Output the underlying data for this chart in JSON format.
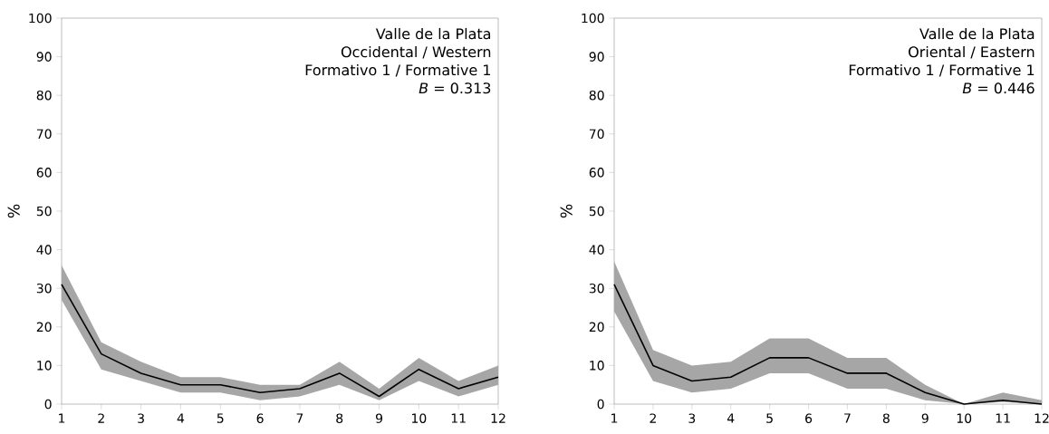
{
  "chart_data": [
    {
      "type": "line",
      "annotations": [
        "Valle de la Plata",
        "Occidental / Western",
        "Formativo 1 / Formative 1",
        "*B* = 0.313"
      ],
      "ylabel": "%",
      "x": [
        1,
        2,
        3,
        4,
        5,
        6,
        7,
        8,
        9,
        10,
        11,
        12
      ],
      "xlim": [
        1,
        12
      ],
      "xticks": [
        1,
        2,
        3,
        4,
        5,
        6,
        7,
        8,
        9,
        10,
        11,
        12
      ],
      "ylim": [
        0,
        100
      ],
      "yticks": [
        0,
        10,
        20,
        30,
        40,
        50,
        60,
        70,
        80,
        90,
        100
      ],
      "grid": false,
      "marker": "none",
      "line_style": "solid",
      "series": [
        {
          "color": "#000000",
          "values": [
            31,
            13,
            8,
            5,
            5,
            3,
            4,
            8,
            2,
            9,
            4,
            7
          ],
          "lower": [
            27,
            9,
            6,
            3,
            3,
            1,
            2,
            5,
            1,
            6,
            2,
            5
          ],
          "upper": [
            36,
            16,
            11,
            7,
            7,
            5,
            5,
            11,
            4,
            12,
            6,
            10
          ]
        }
      ]
    },
    {
      "type": "line",
      "annotations": [
        "Valle de la Plata",
        "Oriental / Eastern",
        "Formativo 1 / Formative 1",
        "*B* = 0.446"
      ],
      "ylabel": "%",
      "x": [
        1,
        2,
        3,
        4,
        5,
        6,
        7,
        8,
        9,
        10,
        11,
        12
      ],
      "xlim": [
        1,
        12
      ],
      "xticks": [
        1,
        2,
        3,
        4,
        5,
        6,
        7,
        8,
        9,
        10,
        11,
        12
      ],
      "ylim": [
        0,
        100
      ],
      "yticks": [
        0,
        10,
        20,
        30,
        40,
        50,
        60,
        70,
        80,
        90,
        100
      ],
      "grid": false,
      "marker": "none",
      "line_style": "solid",
      "series": [
        {
          "color": "#000000",
          "values": [
            31,
            10,
            6,
            7,
            12,
            12,
            8,
            8,
            3,
            0,
            1,
            0
          ],
          "lower": [
            24,
            6,
            3,
            4,
            8,
            8,
            4,
            4,
            1,
            0,
            0.5,
            0
          ],
          "upper": [
            37,
            14,
            10,
            11,
            17,
            17,
            12,
            12,
            5,
            0,
            3,
            1
          ]
        }
      ]
    }
  ]
}
